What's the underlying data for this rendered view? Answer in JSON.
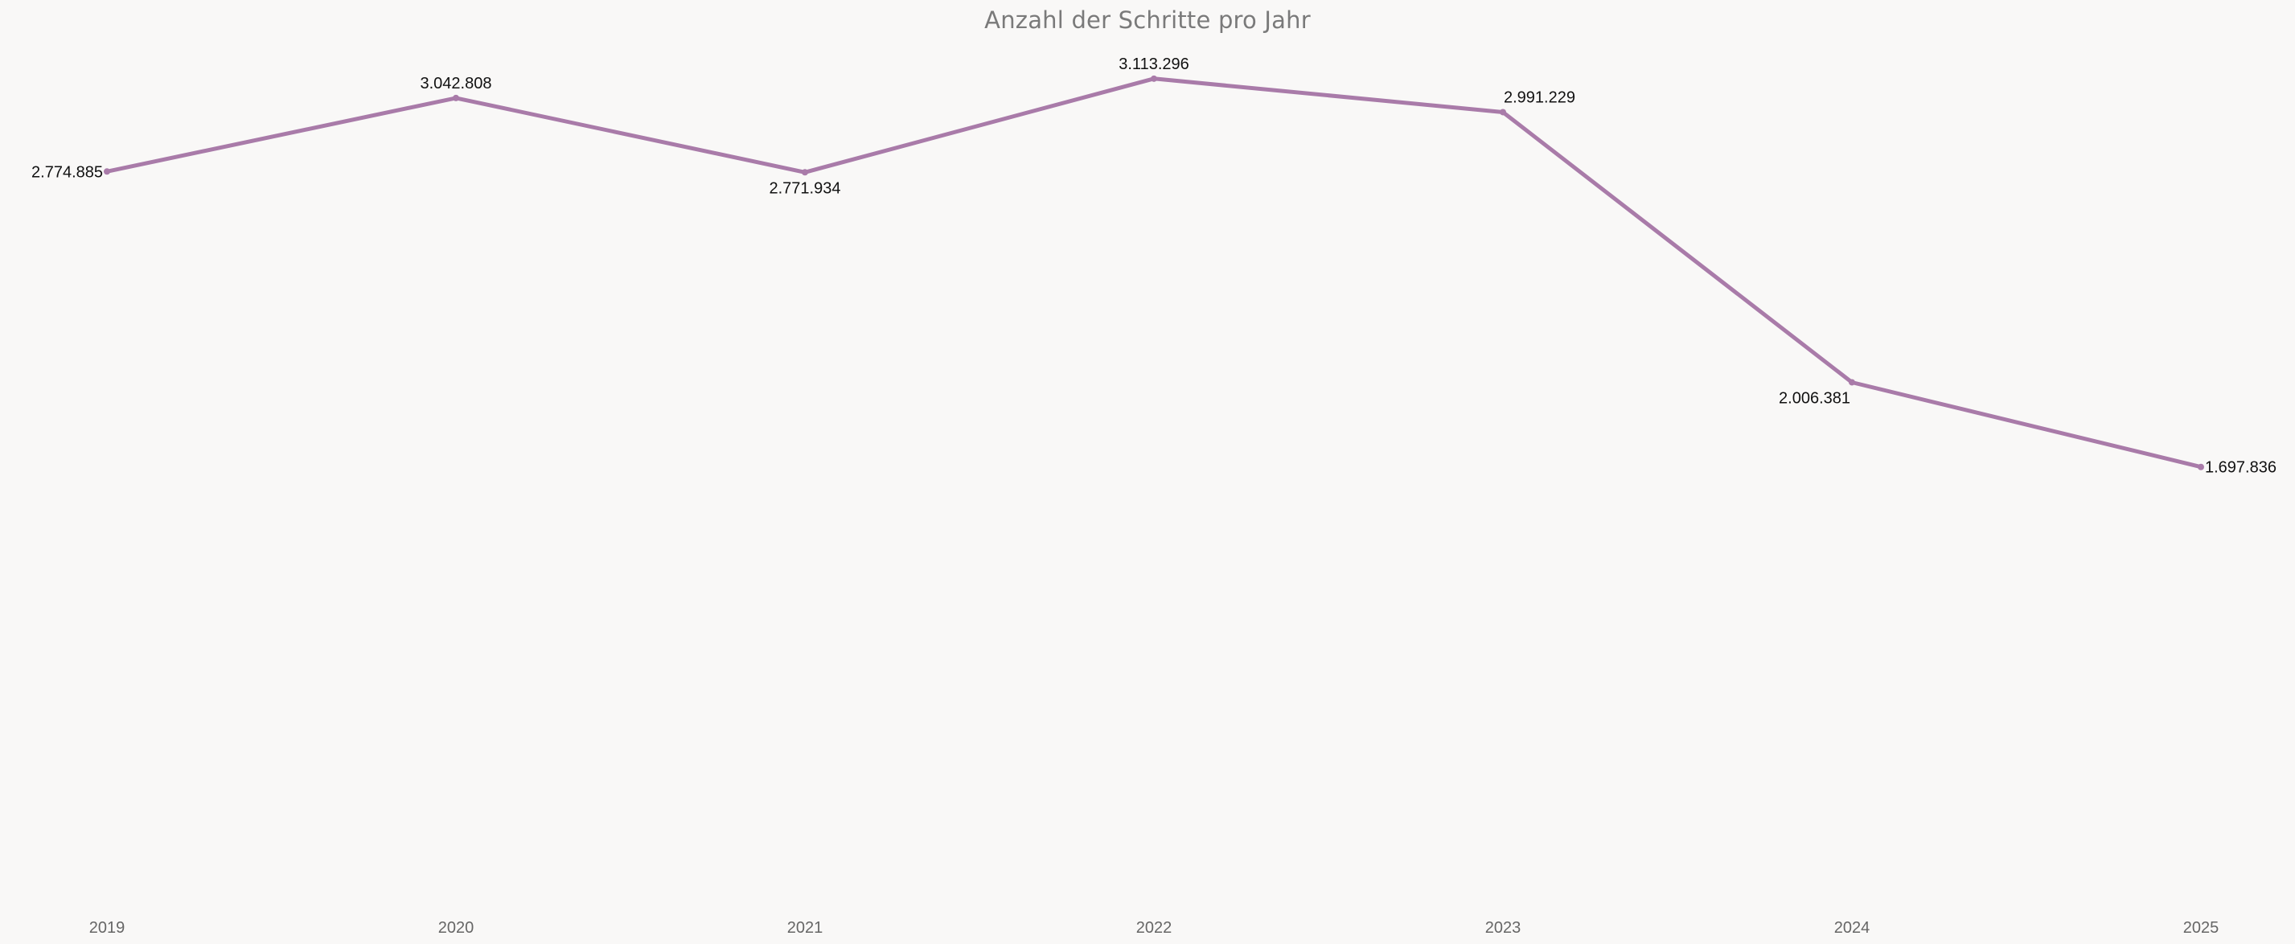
{
  "chart_data": {
    "type": "line",
    "title": "Anzahl der Schritte pro Jahr",
    "xlabel": "",
    "ylabel": "",
    "categories": [
      "2019",
      "2020",
      "2021",
      "2022",
      "2023",
      "2024",
      "2025"
    ],
    "series": [
      {
        "values": [
          2774885,
          3042808,
          2771934,
          3113296,
          2991229,
          2006381,
          1697836
        ],
        "labels": [
          "2.774.885",
          "3.042.808",
          "2.771.934",
          "3.113.296",
          "2.991.229",
          "2.006.381",
          "1.697.836"
        ],
        "color": "#a97ba9"
      }
    ],
    "label_placement": [
      "left",
      "above",
      "below",
      "above",
      "above-right",
      "below-left",
      "right"
    ],
    "ylim": [
      0,
      3400000
    ],
    "grid": false,
    "legend": "none"
  },
  "colors": {
    "background": "#f9f8f7",
    "line": "#a97ba9",
    "title": "#7a7a7a",
    "tick": "#666666",
    "label": "#111111"
  }
}
